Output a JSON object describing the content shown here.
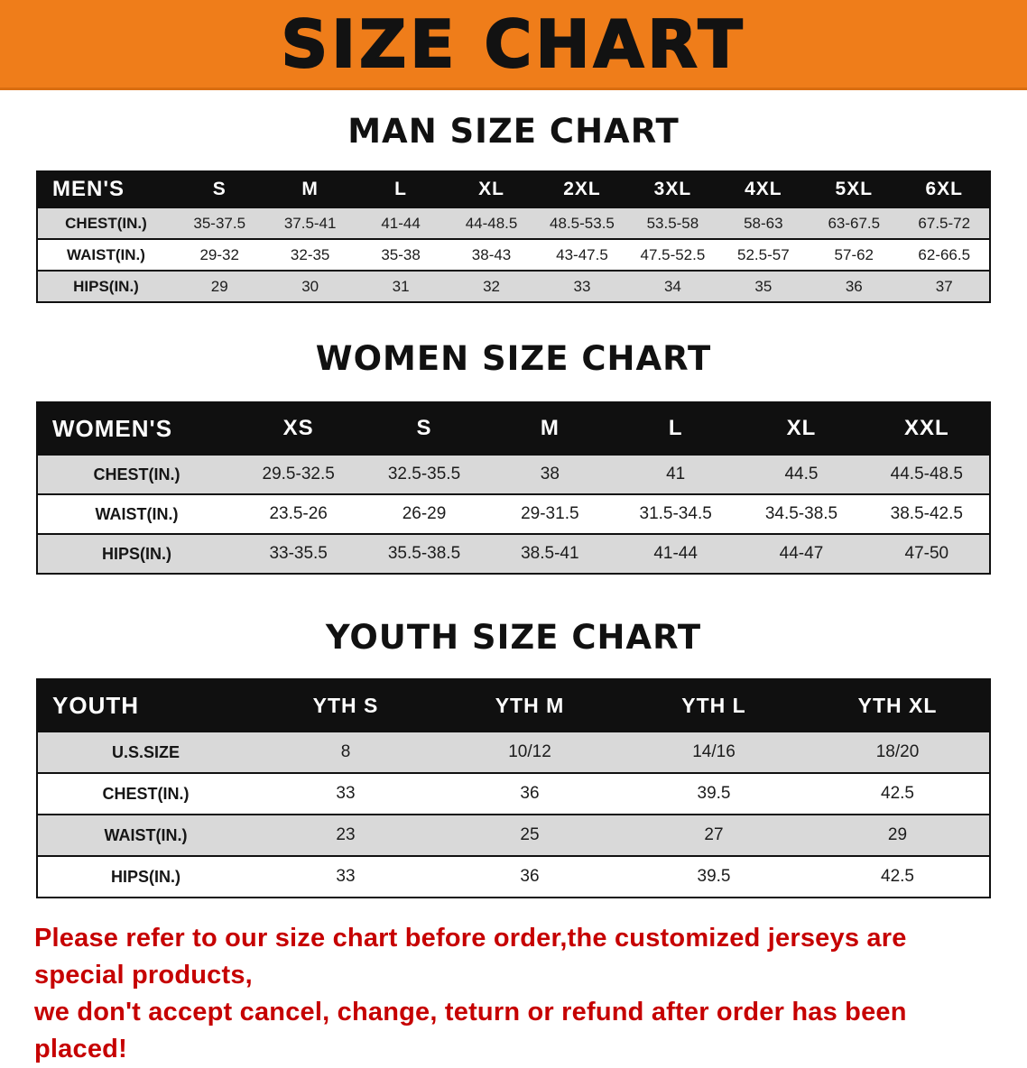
{
  "banner": {
    "title": "SIZE CHART",
    "bg_color": "#ef7d1a"
  },
  "sections": [
    {
      "id": "men",
      "heading": "MAN SIZE CHART",
      "table": {
        "corner_label": "MEN'S",
        "columns": [
          "S",
          "M",
          "L",
          "XL",
          "2XL",
          "3XL",
          "4XL",
          "5XL",
          "6XL"
        ],
        "rows": [
          {
            "label": "CHEST(IN.)",
            "values": [
              "35-37.5",
              "37.5-41",
              "41-44",
              "44-48.5",
              "48.5-53.5",
              "53.5-58",
              "58-63",
              "63-67.5",
              "67.5-72"
            ]
          },
          {
            "label": "WAIST(IN.)",
            "values": [
              "29-32",
              "32-35",
              "35-38",
              "38-43",
              "43-47.5",
              "47.5-52.5",
              "52.5-57",
              "57-62",
              "62-66.5"
            ]
          },
          {
            "label": "HIPS(IN.)",
            "values": [
              "29",
              "30",
              "31",
              "32",
              "33",
              "34",
              "35",
              "36",
              "37"
            ]
          }
        ]
      }
    },
    {
      "id": "women",
      "heading": "WOMEN SIZE CHART",
      "table": {
        "corner_label": "WOMEN'S",
        "columns": [
          "XS",
          "S",
          "M",
          "L",
          "XL",
          "XXL"
        ],
        "rows": [
          {
            "label": "CHEST(IN.)",
            "values": [
              "29.5-32.5",
              "32.5-35.5",
              "38",
              "41",
              "44.5",
              "44.5-48.5"
            ]
          },
          {
            "label": "WAIST(IN.)",
            "values": [
              "23.5-26",
              "26-29",
              "29-31.5",
              "31.5-34.5",
              "34.5-38.5",
              "38.5-42.5"
            ]
          },
          {
            "label": "HIPS(IN.)",
            "values": [
              "33-35.5",
              "35.5-38.5",
              "38.5-41",
              "41-44",
              "44-47",
              "47-50"
            ]
          }
        ]
      }
    },
    {
      "id": "youth",
      "heading": "YOUTH SIZE CHART",
      "table": {
        "corner_label": "YOUTH",
        "columns": [
          "YTH S",
          "YTH M",
          "YTH L",
          "YTH XL"
        ],
        "rows": [
          {
            "label": "U.S.SIZE",
            "values": [
              "8",
              "10/12",
              "14/16",
              "18/20"
            ]
          },
          {
            "label": "CHEST(IN.)",
            "values": [
              "33",
              "36",
              "39.5",
              "42.5"
            ]
          },
          {
            "label": "WAIST(IN.)",
            "values": [
              "23",
              "25",
              "27",
              "29"
            ]
          },
          {
            "label": "HIPS(IN.)",
            "values": [
              "33",
              "36",
              "39.5",
              "42.5"
            ]
          }
        ]
      }
    }
  ],
  "disclaimer": {
    "color": "#c60000",
    "lines": [
      "Please refer to our size chart before order,the customized jerseys are special products,",
      "we don't accept cancel, change, teturn or refund after order has been placed!"
    ]
  }
}
